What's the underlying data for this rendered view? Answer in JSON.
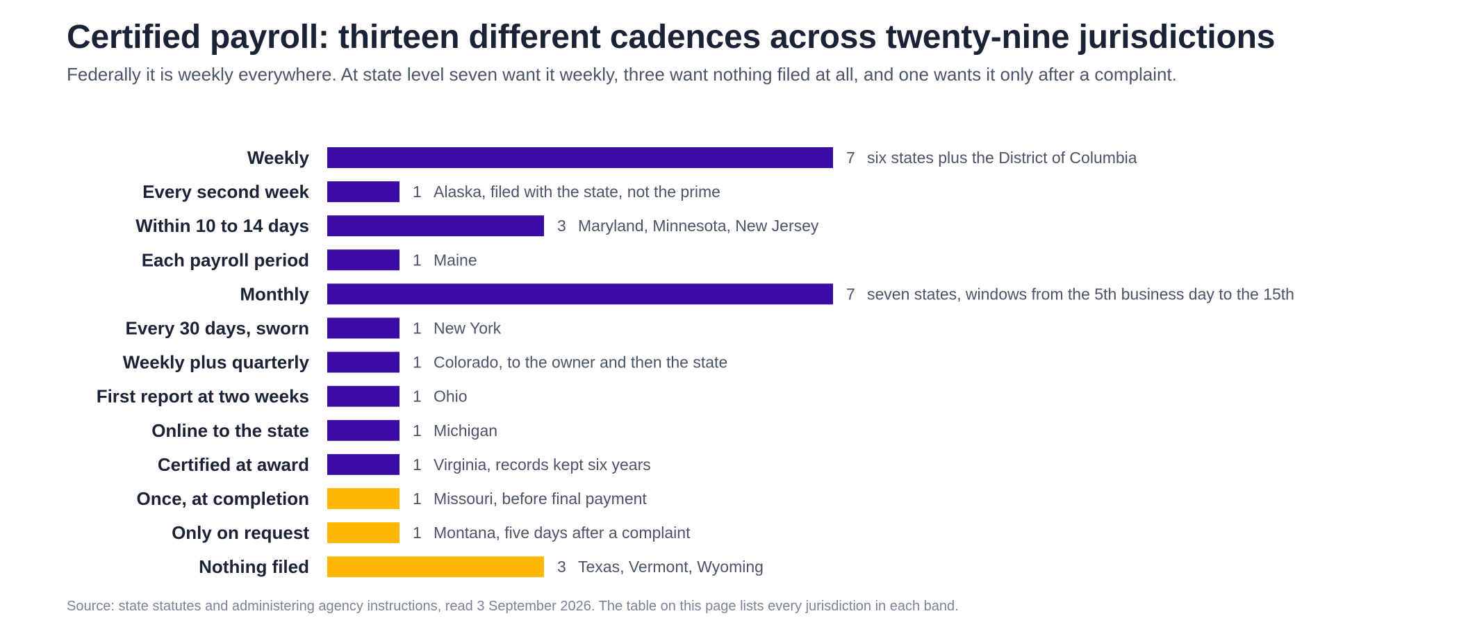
{
  "header": {
    "title": "Certified payroll: thirteen different cadences across twenty-nine jurisdictions",
    "subtitle": "Federally it is weekly everywhere. At state level seven want it weekly, three want nothing filed at all, and one wants it only after a complaint."
  },
  "footer": {
    "source": "Source: state statutes and administering agency instructions, read 3 September 2026. The table on this page lists every jurisdiction in each band."
  },
  "colors": {
    "filed": "#3a0ca3",
    "not_routinely_filed": "#ffb703"
  },
  "chart_data": {
    "type": "bar",
    "orientation": "horizontal",
    "title": "Certified payroll: thirteen different cadences across twenty-nine jurisdictions",
    "subtitle": "Federally it is weekly everywhere. At state level seven want it weekly, three want nothing filed at all, and one wants it only after a complaint.",
    "xlim": [
      0,
      7
    ],
    "grid": false,
    "legend": "none",
    "categories": [
      "Weekly",
      "Every second week",
      "Within 10 to 14 days",
      "Each payroll period",
      "Monthly",
      "Every 30 days, sworn",
      "Weekly plus quarterly",
      "First report at two weeks",
      "Online to the state",
      "Certified at award",
      "Once, at completion",
      "Only on request",
      "Nothing filed"
    ],
    "values": [
      7,
      1,
      3,
      1,
      7,
      1,
      1,
      1,
      1,
      1,
      1,
      1,
      3
    ],
    "notes": [
      "six states plus the District of Columbia",
      "Alaska, filed with the state, not the prime",
      "Maryland, Minnesota, New Jersey",
      "Maine",
      "seven states, windows from the 5th business day to the 15th",
      "New York",
      "Colorado, to the owner and then the state",
      "Ohio",
      "Michigan",
      "Virginia, records kept six years",
      "Missouri, before final payment",
      "Montana, five days after a complaint",
      "Texas, Vermont, Wyoming"
    ],
    "bar_colors": [
      "#3a0ca3",
      "#3a0ca3",
      "#3a0ca3",
      "#3a0ca3",
      "#3a0ca3",
      "#3a0ca3",
      "#3a0ca3",
      "#3a0ca3",
      "#3a0ca3",
      "#3a0ca3",
      "#ffb703",
      "#ffb703",
      "#ffb703"
    ]
  }
}
